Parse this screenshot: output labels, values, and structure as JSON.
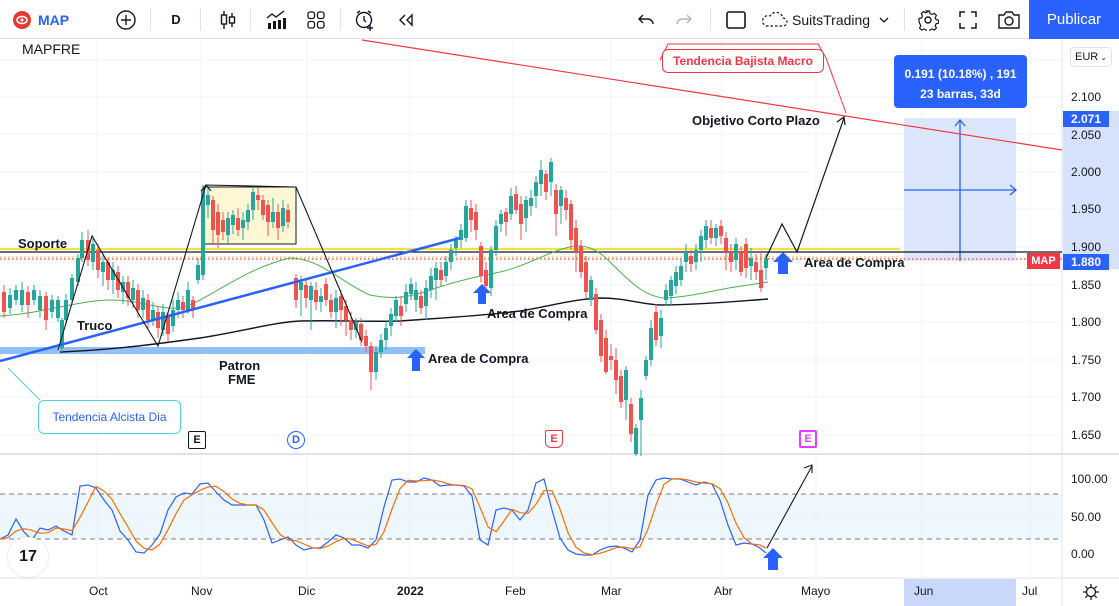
{
  "toolbar": {
    "symbol": "MAP",
    "interval": "D",
    "layout_name": "SuitsTrading",
    "publish_label": "Publicar",
    "icons": [
      "symbol-logo-icon",
      "add-symbol-icon",
      "interval-icon",
      "candles-icon",
      "indicators-icon",
      "layout-grid-icon",
      "alert-icon",
      "replay-icon",
      "undo-icon",
      "redo-icon",
      "rectangle-icon",
      "cloud-icon",
      "chevron-down-icon",
      "settings-icon",
      "fullscreen-icon",
      "camera-icon"
    ]
  },
  "chart": {
    "symbol_title": "MAPFRE",
    "currency": "EUR",
    "price_axis": [
      "2.100",
      "2.050",
      "2.000",
      "1.950",
      "1.900",
      "1.850",
      "1.800",
      "1.750",
      "1.700",
      "1.650"
    ],
    "price_tags": {
      "target": "2.071",
      "last": "1.880",
      "symbol_badge": "MAP"
    },
    "time_axis": [
      "Oct",
      "Nov",
      "Dic",
      "2022",
      "Feb",
      "Mar",
      "Abr",
      "Mayo",
      "Jun",
      "Jul"
    ],
    "oscillator_axis": [
      "100.00",
      "50.00",
      "0.00"
    ],
    "measure": {
      "line1": "0.191 (10.18%) , 191",
      "line2": "23 barras, 33d"
    },
    "annotations": {
      "soporte": "Soporte",
      "truco": "Truco",
      "patron_1": "Patron",
      "patron_2": "FME",
      "area_compra_1": "Area de Compra",
      "area_compra_2": "Area de Compra",
      "area_compra_3": "Area de Compra",
      "objetivo": "Objetivo Corto Plazo",
      "tendencia_bajista": "Tendencia Bajista Macro",
      "tendencia_alcista": "Tendencia Alcista Dia"
    },
    "events": [
      {
        "label": "E",
        "type": "earnings",
        "color": "#131722"
      },
      {
        "label": "D",
        "type": "dividend",
        "color": "#2962ff"
      },
      {
        "label": "E",
        "type": "earnings",
        "color": "#f23645"
      },
      {
        "label": "E",
        "type": "earnings-upcoming",
        "color": "#e040fb"
      }
    ],
    "colors": {
      "up": "#26a69a",
      "down": "#ef5350",
      "ma_short": "#4caf50",
      "ma_long": "#131722",
      "trend_up": "#2962ff",
      "trend_down": "#f23645",
      "accent": "#2962ff"
    }
  }
}
